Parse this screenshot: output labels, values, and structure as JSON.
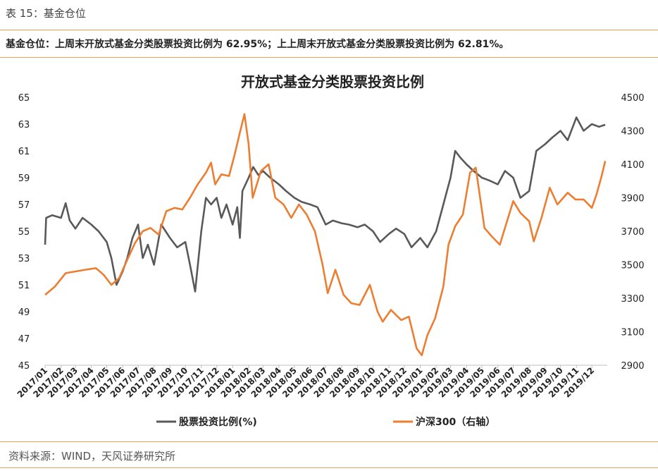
{
  "header": {
    "table_label": "表 15：基金仓位",
    "summary": "基金仓位：上周末开放式基金分类股票投资比例为 62.95%；上上周末开放式基金分类股票投资比例为 62.81%。"
  },
  "footer": {
    "source": "资料来源：WIND，天风证券研究所"
  },
  "colors": {
    "accent_rule": "#e8a25a",
    "series_gray": "#595959",
    "series_orange": "#ed7d31"
  },
  "chart_data": {
    "type": "line",
    "title": "开放式基金分类股票投资比例",
    "x_type": "date",
    "x_range": [
      "2017-01-01",
      "2019-12-31"
    ],
    "x_tick_labels": [
      "2017/01",
      "2017/02",
      "2017/03",
      "2017/04",
      "2017/05",
      "2017/06",
      "2017/07",
      "2017/08",
      "2017/09",
      "2017/10",
      "2017/11",
      "2017/12",
      "2018/01",
      "2018/02",
      "2018/03",
      "2018/04",
      "2018/05",
      "2018/06",
      "2018/07",
      "2018/08",
      "2018/09",
      "2018/10",
      "2018/11",
      "2018/12",
      "2019/01",
      "2019/02",
      "2019/03",
      "2019/04",
      "2019/05",
      "2019/06",
      "2019/07",
      "2019/08",
      "2019/09",
      "2019/10",
      "2019/11",
      "2019/12"
    ],
    "y_left": {
      "min": 45,
      "max": 65,
      "ticks": [
        45,
        47,
        49,
        51,
        53,
        55,
        57,
        59,
        61,
        63,
        65
      ]
    },
    "y_right": {
      "min": 2900,
      "max": 4500,
      "ticks": [
        2900,
        3100,
        3300,
        3500,
        3700,
        3900,
        4100,
        4300,
        4500
      ]
    },
    "grid": false,
    "legend_position": "bottom",
    "series": [
      {
        "name": "股票投资比例(%)",
        "axis": "left",
        "color": "#595959",
        "points": [
          [
            "2017-01-01",
            54.0
          ],
          [
            "2017-01-03",
            56.0
          ],
          [
            "2017-01-15",
            56.2
          ],
          [
            "2017-02-01",
            56.0
          ],
          [
            "2017-02-10",
            57.1
          ],
          [
            "2017-02-18",
            55.8
          ],
          [
            "2017-03-01",
            55.2
          ],
          [
            "2017-03-15",
            56.0
          ],
          [
            "2017-04-01",
            55.5
          ],
          [
            "2017-04-15",
            55.0
          ],
          [
            "2017-05-01",
            54.2
          ],
          [
            "2017-05-10",
            53.0
          ],
          [
            "2017-05-20",
            51.0
          ],
          [
            "2017-06-01",
            52.0
          ],
          [
            "2017-06-10",
            53.0
          ],
          [
            "2017-06-20",
            54.5
          ],
          [
            "2017-07-01",
            55.5
          ],
          [
            "2017-07-10",
            53.0
          ],
          [
            "2017-07-20",
            54.0
          ],
          [
            "2017-08-01",
            52.5
          ],
          [
            "2017-08-15",
            55.5
          ],
          [
            "2017-09-01",
            54.5
          ],
          [
            "2017-09-15",
            53.8
          ],
          [
            "2017-10-01",
            54.2
          ],
          [
            "2017-10-10",
            52.5
          ],
          [
            "2017-10-20",
            50.5
          ],
          [
            "2017-11-01",
            55.0
          ],
          [
            "2017-11-10",
            57.5
          ],
          [
            "2017-11-20",
            57.0
          ],
          [
            "2017-12-01",
            57.5
          ],
          [
            "2017-12-10",
            56.0
          ],
          [
            "2017-12-20",
            57.0
          ],
          [
            "2018-01-01",
            55.5
          ],
          [
            "2018-01-10",
            56.8
          ],
          [
            "2018-01-15",
            54.5
          ],
          [
            "2018-01-20",
            58.0
          ],
          [
            "2018-02-01",
            59.0
          ],
          [
            "2018-02-10",
            59.8
          ],
          [
            "2018-02-20",
            59.2
          ],
          [
            "2018-03-01",
            59.5
          ],
          [
            "2018-03-15",
            59.0
          ],
          [
            "2018-04-01",
            58.5
          ],
          [
            "2018-04-15",
            58.0
          ],
          [
            "2018-05-01",
            57.5
          ],
          [
            "2018-05-15",
            57.2
          ],
          [
            "2018-06-01",
            57.0
          ],
          [
            "2018-06-15",
            56.8
          ],
          [
            "2018-07-01",
            55.5
          ],
          [
            "2018-07-15",
            55.8
          ],
          [
            "2018-08-01",
            55.6
          ],
          [
            "2018-08-15",
            55.5
          ],
          [
            "2018-09-01",
            55.3
          ],
          [
            "2018-09-15",
            55.5
          ],
          [
            "2018-10-01",
            55.0
          ],
          [
            "2018-10-15",
            54.2
          ],
          [
            "2018-11-01",
            54.8
          ],
          [
            "2018-11-15",
            55.2
          ],
          [
            "2018-12-01",
            54.8
          ],
          [
            "2018-12-15",
            53.8
          ],
          [
            "2019-01-01",
            54.5
          ],
          [
            "2019-01-15",
            53.8
          ],
          [
            "2019-02-01",
            55.0
          ],
          [
            "2019-02-15",
            57.0
          ],
          [
            "2019-03-01",
            59.0
          ],
          [
            "2019-03-10",
            61.0
          ],
          [
            "2019-03-20",
            60.5
          ],
          [
            "2019-04-01",
            60.0
          ],
          [
            "2019-04-15",
            59.5
          ],
          [
            "2019-05-01",
            59.0
          ],
          [
            "2019-05-15",
            58.8
          ],
          [
            "2019-06-01",
            58.5
          ],
          [
            "2019-06-15",
            59.5
          ],
          [
            "2019-07-01",
            59.0
          ],
          [
            "2019-07-15",
            57.5
          ],
          [
            "2019-08-01",
            58.0
          ],
          [
            "2019-08-15",
            61.0
          ],
          [
            "2019-09-01",
            61.5
          ],
          [
            "2019-09-15",
            62.0
          ],
          [
            "2019-10-01",
            62.5
          ],
          [
            "2019-10-15",
            61.8
          ],
          [
            "2019-11-01",
            63.5
          ],
          [
            "2019-11-15",
            62.5
          ],
          [
            "2019-12-01",
            63.0
          ],
          [
            "2019-12-15",
            62.8
          ],
          [
            "2019-12-27",
            62.95
          ]
        ]
      },
      {
        "name": "沪深300（右轴）",
        "axis": "right",
        "color": "#ed7d31",
        "points": [
          [
            "2017-01-01",
            3320
          ],
          [
            "2017-01-20",
            3370
          ],
          [
            "2017-02-10",
            3450
          ],
          [
            "2017-03-01",
            3460
          ],
          [
            "2017-03-20",
            3470
          ],
          [
            "2017-04-10",
            3480
          ],
          [
            "2017-04-25",
            3440
          ],
          [
            "2017-05-10",
            3380
          ],
          [
            "2017-05-25",
            3420
          ],
          [
            "2017-06-10",
            3530
          ],
          [
            "2017-06-25",
            3630
          ],
          [
            "2017-07-10",
            3700
          ],
          [
            "2017-07-25",
            3720
          ],
          [
            "2017-08-10",
            3680
          ],
          [
            "2017-08-25",
            3820
          ],
          [
            "2017-09-10",
            3840
          ],
          [
            "2017-09-25",
            3830
          ],
          [
            "2017-10-10",
            3900
          ],
          [
            "2017-10-25",
            3980
          ],
          [
            "2017-11-10",
            4050
          ],
          [
            "2017-11-20",
            4110
          ],
          [
            "2017-11-28",
            3980
          ],
          [
            "2017-12-10",
            4040
          ],
          [
            "2017-12-25",
            4030
          ],
          [
            "2018-01-05",
            4160
          ],
          [
            "2018-01-15",
            4290
          ],
          [
            "2018-01-24",
            4400
          ],
          [
            "2018-02-01",
            4220
          ],
          [
            "2018-02-09",
            3900
          ],
          [
            "2018-02-25",
            4060
          ],
          [
            "2018-03-12",
            4100
          ],
          [
            "2018-03-25",
            3900
          ],
          [
            "2018-04-10",
            3860
          ],
          [
            "2018-04-25",
            3780
          ],
          [
            "2018-05-10",
            3860
          ],
          [
            "2018-05-25",
            3800
          ],
          [
            "2018-06-10",
            3700
          ],
          [
            "2018-06-25",
            3500
          ],
          [
            "2018-07-05",
            3330
          ],
          [
            "2018-07-20",
            3470
          ],
          [
            "2018-08-05",
            3320
          ],
          [
            "2018-08-20",
            3270
          ],
          [
            "2018-09-05",
            3260
          ],
          [
            "2018-09-25",
            3380
          ],
          [
            "2018-10-10",
            3220
          ],
          [
            "2018-10-20",
            3160
          ],
          [
            "2018-11-05",
            3230
          ],
          [
            "2018-11-25",
            3170
          ],
          [
            "2018-12-10",
            3190
          ],
          [
            "2018-12-25",
            3000
          ],
          [
            "2019-01-04",
            2960
          ],
          [
            "2019-01-15",
            3080
          ],
          [
            "2019-01-30",
            3180
          ],
          [
            "2019-02-15",
            3370
          ],
          [
            "2019-02-25",
            3620
          ],
          [
            "2019-03-10",
            3730
          ],
          [
            "2019-03-25",
            3800
          ],
          [
            "2019-04-08",
            4050
          ],
          [
            "2019-04-19",
            4080
          ],
          [
            "2019-05-06",
            3720
          ],
          [
            "2019-05-20",
            3670
          ],
          [
            "2019-06-05",
            3620
          ],
          [
            "2019-06-15",
            3720
          ],
          [
            "2019-07-01",
            3880
          ],
          [
            "2019-07-15",
            3810
          ],
          [
            "2019-08-01",
            3760
          ],
          [
            "2019-08-10",
            3640
          ],
          [
            "2019-08-25",
            3780
          ],
          [
            "2019-09-10",
            3960
          ],
          [
            "2019-09-25",
            3860
          ],
          [
            "2019-10-15",
            3930
          ],
          [
            "2019-10-30",
            3890
          ],
          [
            "2019-11-15",
            3890
          ],
          [
            "2019-12-01",
            3840
          ],
          [
            "2019-12-10",
            3920
          ],
          [
            "2019-12-20",
            4030
          ],
          [
            "2019-12-27",
            4120
          ]
        ]
      }
    ]
  }
}
